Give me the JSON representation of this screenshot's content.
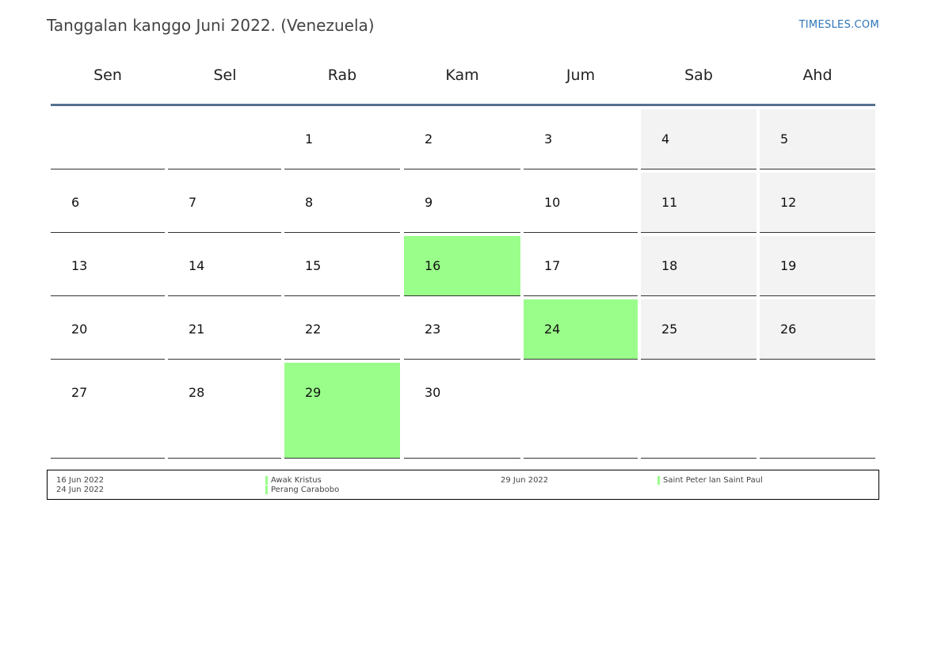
{
  "header": {
    "title": "Tanggalan kanggo Juni 2022. (Venezuela)",
    "brand": "TIMESLES.COM"
  },
  "calendar": {
    "weekdays": [
      "Sen",
      "Sel",
      "Rab",
      "Kam",
      "Jum",
      "Sab",
      "Ahd"
    ],
    "weeks": [
      [
        null,
        null,
        "1",
        "2",
        "3",
        "4",
        "5"
      ],
      [
        "6",
        "7",
        "8",
        "9",
        "10",
        "11",
        "12"
      ],
      [
        "13",
        "14",
        "15",
        "16",
        "17",
        "18",
        "19"
      ],
      [
        "20",
        "21",
        "22",
        "23",
        "24",
        "25",
        "26"
      ],
      [
        "27",
        "28",
        "29",
        "30",
        null,
        null,
        null
      ]
    ],
    "weekend_color": "#f3f3f3",
    "holiday_color": "#9aff8a",
    "holiday_days": [
      "16",
      "24",
      "29"
    ]
  },
  "legend": {
    "items": [
      {
        "date": "16 Jun 2022",
        "name": "Awak Kristus"
      },
      {
        "date": "24 Jun 2022",
        "name": "Perang Carabobo"
      },
      {
        "date": "29 Jun 2022",
        "name": "Saint Peter lan Saint Paul"
      }
    ]
  }
}
